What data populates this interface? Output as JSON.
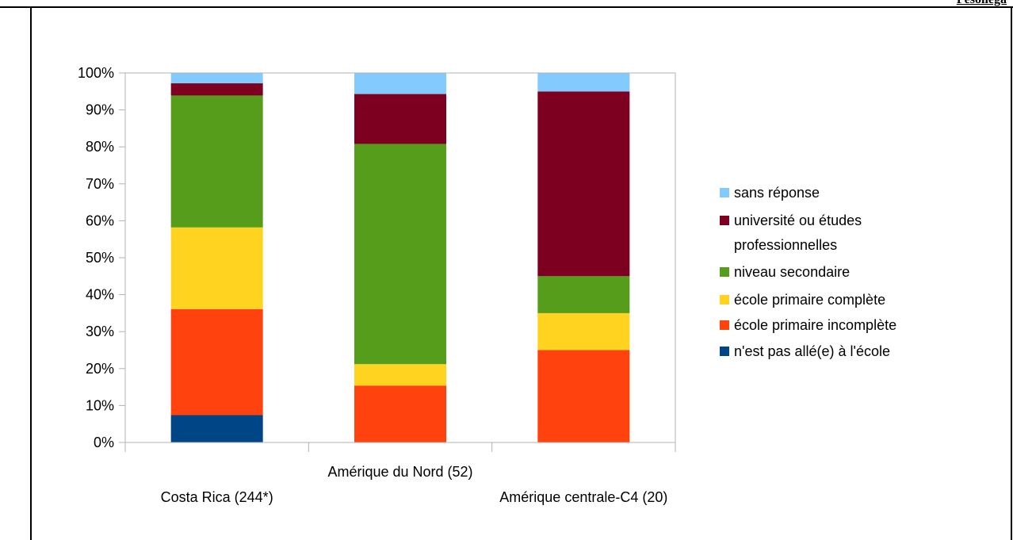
{
  "corner_text": "Pesoilega",
  "chart_data": {
    "type": "bar",
    "stacked": true,
    "percent": true,
    "categories": [
      "Costa Rica (244*)",
      "Amérique du Nord (52)",
      "Amérique centrale-C4 (20)"
    ],
    "yticks": [
      "0%",
      "10%",
      "20%",
      "30%",
      "40%",
      "50%",
      "60%",
      "70%",
      "80%",
      "90%",
      "100%"
    ],
    "ylim": [
      0,
      100
    ],
    "grid": false,
    "legend_position": "right",
    "series": [
      {
        "name": "n'est pas allé(e) à l'école",
        "color": "#004586",
        "values": [
          7.4,
          0,
          0
        ]
      },
      {
        "name": "école primaire incomplète",
        "color": "#ff420e",
        "values": [
          28.7,
          15.4,
          25
        ]
      },
      {
        "name": "école primaire complète",
        "color": "#ffd320",
        "values": [
          22.1,
          5.8,
          10
        ]
      },
      {
        "name": "niveau secondaire",
        "color": "#579d1c",
        "values": [
          35.7,
          59.6,
          10
        ]
      },
      {
        "name": "université ou études professionnelles",
        "color": "#7e0021",
        "values": [
          3.3,
          13.5,
          50
        ]
      },
      {
        "name": "sans réponse",
        "color": "#83caff",
        "values": [
          2.8,
          5.7,
          5
        ]
      }
    ],
    "legend_lines": {
      "university": [
        "université ou études",
        "professionnelles"
      ]
    }
  }
}
